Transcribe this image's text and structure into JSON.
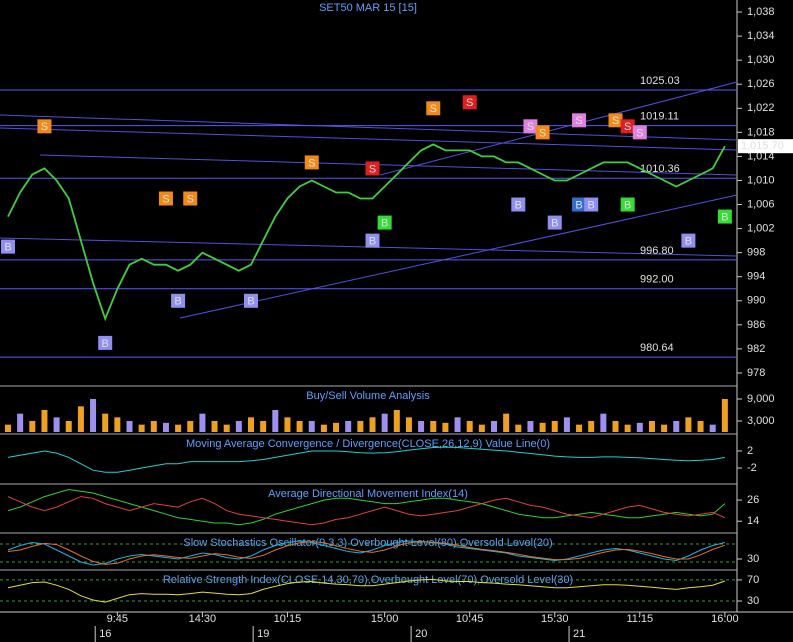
{
  "chart_data": [
    {
      "type": "line",
      "title": "SET50 MAR 15   [15]",
      "categories": [
        null,
        null,
        null,
        null,
        null,
        null,
        null,
        null,
        null,
        "9:45",
        null,
        null,
        null,
        null,
        null,
        null,
        "14:30",
        null,
        null,
        null,
        null,
        null,
        null,
        "10:15",
        null,
        null,
        null,
        null,
        null,
        null,
        null,
        "15:00",
        null,
        null,
        null,
        null,
        null,
        null,
        "10:45",
        null,
        null,
        null,
        null,
        null,
        null,
        "15:30",
        null,
        null,
        null,
        null,
        null,
        null,
        "11:15",
        null,
        null,
        null,
        null,
        null,
        null,
        "16:00"
      ],
      "dates": [
        null,
        null,
        null,
        null,
        null,
        null,
        null,
        null,
        "16",
        null,
        null,
        null,
        null,
        null,
        null,
        null,
        null,
        null,
        null,
        null,
        null,
        "19",
        null,
        null,
        null,
        null,
        null,
        null,
        null,
        null,
        null,
        null,
        null,
        null,
        "20",
        null,
        null,
        null,
        null,
        null,
        null,
        null,
        null,
        null,
        null,
        null,
        null,
        "21",
        null,
        null,
        null,
        null,
        null,
        null,
        null,
        null,
        null,
        null,
        null,
        null
      ],
      "series": [
        {
          "color": "#3fcf3f",
          "values": [
            1004,
            1008,
            1011,
            1012,
            1010,
            1007,
            1000,
            993,
            987,
            992,
            996,
            997,
            996,
            996,
            995,
            996,
            998,
            997,
            996,
            995,
            996,
            1000,
            1004,
            1007,
            1009,
            1010,
            1009,
            1008,
            1008,
            1007,
            1007,
            1009,
            1011,
            1013,
            1015,
            1016,
            1015,
            1015,
            1015,
            1014,
            1014,
            1013,
            1013,
            1012,
            1011,
            1010,
            1010,
            1011,
            1012,
            1013,
            1013,
            1013,
            1012,
            1011,
            1010,
            1009,
            1010,
            1011,
            1012,
            1015.7
          ],
          "value_labels": [
            null,
            null,
            null,
            null,
            null,
            null,
            null,
            null,
            null,
            null,
            null,
            null,
            null,
            null,
            null,
            null,
            null,
            null,
            null,
            null,
            null,
            null,
            null,
            null,
            null,
            null,
            null,
            null,
            null,
            null,
            null,
            null,
            null,
            null,
            null,
            null,
            null,
            null,
            null,
            null,
            null,
            null,
            null,
            null,
            null,
            null,
            null,
            null,
            null,
            null,
            null,
            null,
            null,
            null,
            null,
            null,
            null,
            null,
            null,
            "1,015.70"
          ]
        }
      ],
      "levels": [
        1025.03,
        1019.11,
        1010.36,
        {
          "value": 996.8,
          "label": "996.80"
        },
        {
          "value": 992,
          "label": "992.00"
        },
        980.64
      ],
      "signals": [
        {
          "label": "B",
          "index": 0,
          "value": 999,
          "color": "#8f8fef"
        },
        {
          "label": "B",
          "index": 8,
          "value": 983,
          "color": "#8f8fef"
        },
        {
          "label": "B",
          "index": 14,
          "value": 990,
          "color": "#8f8fef"
        },
        {
          "label": "B",
          "index": 20,
          "value": 990,
          "color": "#8f8fef"
        },
        {
          "label": "B",
          "index": 30,
          "value": 1000,
          "color": "#8f8fef"
        },
        {
          "label": "B",
          "index": 31,
          "value": 1003,
          "color": "#33dd33"
        },
        {
          "label": "B",
          "index": 42,
          "value": 1006,
          "color": "#8f8fef"
        },
        {
          "label": "B",
          "index": 45,
          "value": 1003,
          "color": "#8f8fef"
        },
        {
          "label": "B",
          "index": 47,
          "value": 1006,
          "color": "#2f6fcf"
        },
        {
          "label": "B",
          "index": 48,
          "value": 1006,
          "color": "#8f8fef"
        },
        {
          "label": "B",
          "index": 51,
          "value": 1006,
          "color": "#33dd33"
        },
        {
          "label": "B",
          "index": 56,
          "value": 1000,
          "color": "#8f8fef"
        },
        {
          "label": "B",
          "index": 59,
          "value": 1004,
          "color": "#33dd33"
        },
        {
          "label": "S",
          "index": 3,
          "value": 1019,
          "color": "#f08a1a"
        },
        {
          "label": "S",
          "index": 13,
          "value": 1007,
          "color": "#f08a1a"
        },
        {
          "label": "S",
          "index": 15,
          "value": 1007,
          "color": "#f08a1a"
        },
        {
          "label": "S",
          "index": 25,
          "value": 1013,
          "color": "#f08a1a"
        },
        {
          "label": "S",
          "index": 30,
          "value": 1012,
          "color": "#e02020"
        },
        {
          "label": "S",
          "index": 35,
          "value": 1022,
          "color": "#f08a1a"
        },
        {
          "label": "S",
          "index": 38,
          "value": 1023,
          "color": "#e02020"
        },
        {
          "label": "S",
          "index": 43,
          "value": 1019,
          "color": "#e080e0"
        },
        {
          "label": "S",
          "index": 44,
          "value": 1018,
          "color": "#f08a1a"
        },
        {
          "label": "S",
          "index": 47,
          "value": 1020,
          "color": "#e080e0"
        },
        {
          "label": "S",
          "index": 50,
          "value": 1020,
          "color": "#f08a1a"
        },
        {
          "label": "S",
          "index": 51,
          "value": 1019,
          "color": "#e02020"
        },
        {
          "label": "S",
          "index": 52,
          "value": 1018,
          "color": "#e080e0"
        }
      ],
      "ylim": [
        976,
        1040
      ],
      "yticks": [
        978,
        982,
        986,
        990,
        994,
        998,
        {
          "value": 1002,
          "label": "1,002"
        },
        {
          "value": 1006,
          "label": "1,006"
        },
        {
          "value": 1010,
          "label": "1,010"
        },
        {
          "value": 1014,
          "label": "1,014"
        },
        {
          "value": 1018,
          "label": "1,018"
        },
        {
          "value": 1022,
          "label": "1,022"
        },
        {
          "value": 1026,
          "label": "1,026"
        },
        {
          "value": 1030,
          "label": "1,030"
        },
        {
          "value": 1034,
          "label": "1,034"
        },
        {
          "value": 1038,
          "label": "1,038"
        }
      ]
    },
    {
      "type": "bar",
      "title": "Buy/Sell Volume Analysis",
      "series": [
        {
          "color": "#f0a020",
          "values": [
            2000,
            5000,
            3000,
            6000,
            4000,
            3000,
            7000,
            9000,
            5000,
            4000,
            3000,
            2000,
            3000,
            2500,
            2000,
            3000,
            5000,
            3000,
            2000,
            3000,
            4000,
            3000,
            6000,
            4000,
            3000,
            3000,
            2000,
            2500,
            3000,
            3000,
            4000,
            5000,
            6000,
            4000,
            3000,
            3000,
            2500,
            4000,
            3000,
            2000,
            3000,
            5000,
            2000,
            3000,
            2500,
            3000,
            4000,
            2000,
            3000,
            5000,
            3000,
            2000,
            2500,
            3000,
            2000,
            3000,
            4000,
            3000,
            2000,
            9000
          ]
        }
      ],
      "ylim": [
        0,
        12000
      ],
      "yticks": [
        {
          "value": 3000,
          "label": "3,000"
        },
        {
          "value": 9000,
          "label": "9,000"
        }
      ]
    },
    {
      "type": "line",
      "title": "Moving Average Convergence / Divergence(CLOSE,26,12,9) Value Line(0)",
      "series": [
        {
          "color": "#20d0d0",
          "values": [
            0.5,
            1,
            1.5,
            2,
            1.5,
            0.5,
            -1,
            -2.5,
            -3,
            -3,
            -2.5,
            -2,
            -1.5,
            -1,
            -1,
            -0.5,
            -0.5,
            -0.5,
            -0.5,
            -0.5,
            -0.3,
            0,
            0.5,
            1,
            1.5,
            2,
            2,
            2,
            1.8,
            1.6,
            1.5,
            1.6,
            1.8,
            2.2,
            2.5,
            2.8,
            2.9,
            2.8,
            2.6,
            2.4,
            2.2,
            2,
            1.7,
            1.4,
            1.1,
            0.8,
            0.6,
            0.5,
            0.5,
            0.6,
            0.6,
            0.5,
            0.4,
            0.2,
            0,
            -0.2,
            -0.3,
            -0.2,
            0,
            0.5
          ]
        }
      ],
      "ylim": [
        -4.8,
        5.5
      ],
      "yticks": [
        2,
        -2
      ]
    },
    {
      "type": "line",
      "title": "Average Directional Movement Index(14)",
      "series": [
        {
          "color": "#30d030",
          "values": [
            20,
            22,
            25,
            28,
            30,
            32,
            31,
            30,
            28,
            26,
            24,
            22,
            20,
            18,
            16,
            15,
            14,
            13,
            13,
            12,
            13,
            15,
            18,
            20,
            22,
            24,
            26,
            27,
            27,
            26,
            25,
            24,
            24,
            25,
            26,
            27,
            27,
            26,
            25,
            24,
            22,
            20,
            18,
            17,
            16,
            16,
            17,
            18,
            19,
            18,
            17,
            16,
            16,
            17,
            18,
            19,
            18,
            17,
            18,
            24
          ]
        },
        {
          "color": "#e04040",
          "values": [
            28,
            25,
            22,
            20,
            22,
            25,
            28,
            27,
            24,
            22,
            20,
            22,
            24,
            23,
            22,
            25,
            27,
            24,
            20,
            18,
            17,
            16,
            15,
            14,
            13,
            12,
            13,
            15,
            16,
            18,
            20,
            22,
            20,
            18,
            17,
            18,
            19,
            20,
            22,
            24,
            26,
            27,
            25,
            23,
            22,
            20,
            18,
            17,
            16,
            18,
            20,
            22,
            23,
            21,
            19,
            18,
            17,
            18,
            19,
            16
          ]
        }
      ],
      "ylim": [
        9,
        34
      ],
      "yticks": [
        26,
        14
      ]
    },
    {
      "type": "line",
      "title": "Slow Stochastics Oscillator(9,3,3) Overbought Level(80) Oversold Level(20)",
      "series": [
        {
          "color": "#20b0e0",
          "values": [
            60,
            75,
            85,
            80,
            60,
            40,
            20,
            10,
            15,
            30,
            40,
            45,
            40,
            35,
            30,
            40,
            50,
            45,
            35,
            30,
            40,
            60,
            75,
            85,
            90,
            85,
            75,
            65,
            55,
            50,
            60,
            75,
            85,
            90,
            88,
            85,
            80,
            70,
            65,
            60,
            55,
            50,
            40,
            35,
            30,
            25,
            30,
            40,
            50,
            60,
            65,
            60,
            50,
            40,
            30,
            25,
            40,
            60,
            75,
            85
          ]
        },
        {
          "color": "#e07030",
          "values": [
            55,
            60,
            72,
            82,
            78,
            60,
            40,
            22,
            12,
            16,
            30,
            40,
            44,
            40,
            35,
            32,
            40,
            48,
            44,
            36,
            32,
            42,
            60,
            74,
            84,
            88,
            84,
            74,
            64,
            56,
            52,
            60,
            74,
            84,
            88,
            86,
            82,
            76,
            68,
            62,
            58,
            52,
            46,
            38,
            33,
            28,
            28,
            32,
            42,
            52,
            60,
            62,
            56,
            48,
            38,
            30,
            30,
            44,
            62,
            76
          ]
        }
      ],
      "levels": [
        80,
        20
      ],
      "ylim": [
        0,
        110
      ],
      "yticks": [
        30
      ]
    },
    {
      "type": "line",
      "title": "Relative Strength Index(CLOSE,14,30,70),Overbought Level(70),Oversold Level(30)",
      "series": [
        {
          "color": "#e0e030",
          "values": [
            55,
            60,
            65,
            66,
            60,
            52,
            40,
            32,
            28,
            35,
            42,
            44,
            43,
            43,
            42,
            44,
            47,
            45,
            43,
            42,
            44,
            52,
            58,
            63,
            66,
            67,
            64,
            62,
            61,
            59,
            59,
            62,
            65,
            68,
            70,
            71,
            68,
            67,
            67,
            65,
            64,
            62,
            61,
            59,
            57,
            55,
            55,
            57,
            59,
            61,
            61,
            60,
            58,
            56,
            54,
            52,
            55,
            57,
            60,
            68
          ]
        }
      ],
      "levels": [
        70,
        30
      ],
      "ylim": [
        13,
        85
      ],
      "yticks": [
        70,
        30
      ]
    }
  ]
}
